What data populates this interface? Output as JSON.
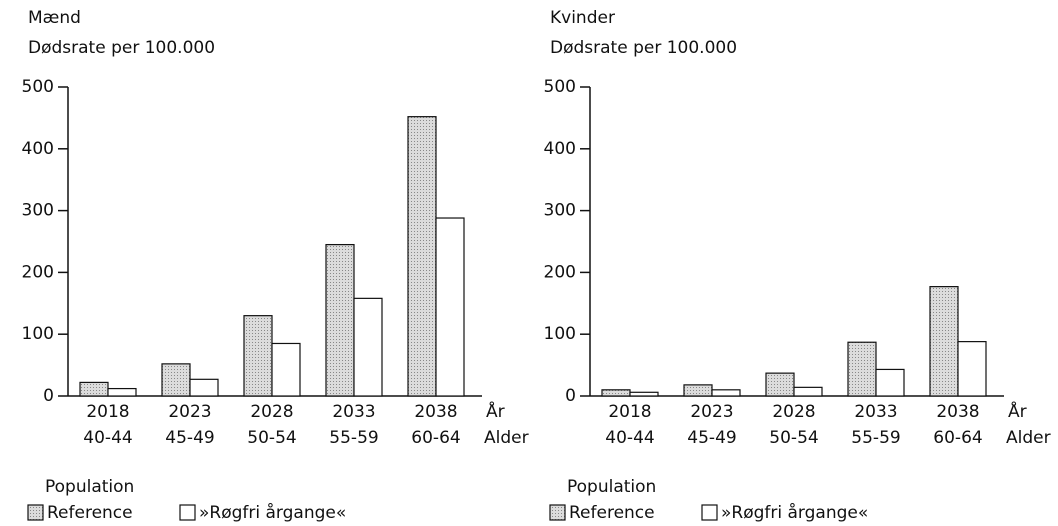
{
  "chart_data": [
    {
      "type": "bar",
      "title": "Mænd",
      "subtitle": "Dødsrate per 100.000",
      "categories": [
        "2018",
        "2023",
        "2028",
        "2033",
        "2038"
      ],
      "age_groups": [
        "40-44",
        "45-49",
        "50-54",
        "55-59",
        "60-64"
      ],
      "x_label": "År",
      "x_sublabel": "Alder",
      "ylim": [
        0,
        500
      ],
      "yticks": [
        0,
        100,
        200,
        300,
        400,
        500
      ],
      "legend_title": "Population",
      "series": [
        {
          "name": "Reference",
          "color": "#cfcfcf",
          "values": [
            22,
            52,
            130,
            245,
            452
          ]
        },
        {
          "name": "»Røgfri årgange«",
          "color": "#ffffff",
          "values": [
            12,
            27,
            85,
            158,
            288
          ]
        }
      ]
    },
    {
      "type": "bar",
      "title": "Kvinder",
      "subtitle": "Dødsrate per 100.000",
      "categories": [
        "2018",
        "2023",
        "2028",
        "2033",
        "2038"
      ],
      "age_groups": [
        "40-44",
        "45-49",
        "50-54",
        "55-59",
        "60-64"
      ],
      "x_label": "År",
      "x_sublabel": "Alder",
      "ylim": [
        0,
        500
      ],
      "yticks": [
        0,
        100,
        200,
        300,
        400,
        500
      ],
      "legend_title": "Population",
      "series": [
        {
          "name": "Reference",
          "color": "#cfcfcf",
          "values": [
            10,
            18,
            37,
            87,
            177
          ]
        },
        {
          "name": "»Røgfri årgange«",
          "color": "#ffffff",
          "values": [
            6,
            10,
            14,
            43,
            88
          ]
        }
      ]
    }
  ]
}
